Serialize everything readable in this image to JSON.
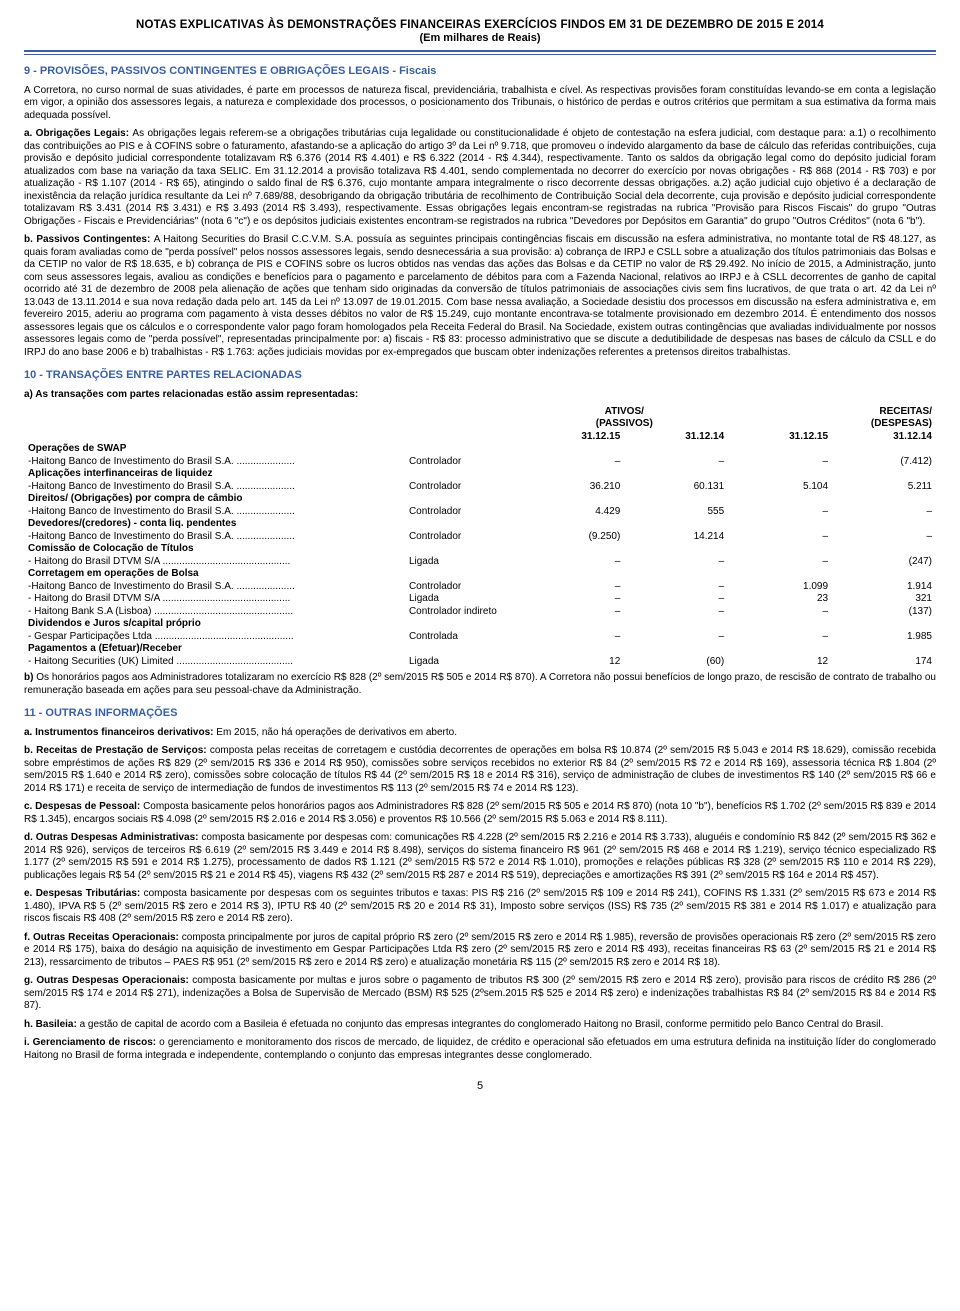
{
  "header": {
    "title": "NOTAS EXPLICATIVAS ÀS DEMONSTRAÇÕES FINANCEIRAS EXERCÍCIOS FINDOS EM 31 DE DEZEMBRO DE 2015 E 2014",
    "subtitle": "(Em milhares de Reais)"
  },
  "colors": {
    "heading": "#3a5fa0",
    "rule": "#3a5fa0",
    "text": "#000000",
    "background": "#ffffff"
  },
  "sec9": {
    "title": "9 - PROVISÕES, PASSIVOS CONTINGENTES E OBRIGAÇÕES LEGAIS - Fiscais",
    "intro": "A Corretora, no curso normal de suas atividades, é parte em processos de natureza fiscal, previdenciária, trabalhista e cível. As respectivas provisões foram constituídas levando-se em conta a legislação em vigor, a opinião dos assessores legais, a natureza e complexidade dos processos, o posicionamento dos Tribunais, o histórico de perdas e outros critérios que permitam a sua estimativa da forma mais adequada possível.",
    "a_lead": "a. Obrigações Legais: ",
    "a_body": "As obrigações legais referem-se a obrigações tributárias cuja legalidade ou constitucionalidade é objeto de contestação na esfera judicial, com destaque para: a.1) o recolhimento das contribuições ao PIS e à COFINS sobre o faturamento, afastando-se a aplicação do artigo 3º da Lei nº 9.718, que promoveu o indevido alargamento da base de cálculo das referidas contribuições, cuja provisão e depósito judicial correspondente totalizavam R$ 6.376 (2014 R$ 4.401) e R$ 6.322 (2014 - R$ 4.344), respectivamente. Tanto os saldos da obrigação legal como do depósito judicial foram atualizados com base na variação da taxa SELIC. Em 31.12.2014 a provisão totalizava R$ 4.401, sendo complementada no decorrer do exercício por novas obrigações - R$ 868 (2014 - R$ 703) e por atualização - R$ 1.107 (2014 - R$ 65), atingindo o saldo final de R$ 6.376, cujo montante ampara integralmente o risco decorrente dessas obrigações. a.2) ação judicial cujo objetivo é a declaração de inexistência da relação jurídica resultante da Lei nº 7.689/88, desobrigando da obrigação tributária de recolhimento de Contribuição Social dela decorrente, cuja provisão e depósito judicial correspondente totalizavam R$ 3.431 (2014 R$ 3.431) e R$ 3.493 (2014 R$ 3.493), respectivamente. Essas obrigações legais encontram-se registradas na rubrica \"Provisão para Riscos Fiscais\" do grupo \"Outras Obrigações - Fiscais e Previdenciárias\" (nota 6 \"c\") e os depósitos judiciais existentes encontram-se registrados na rubrica \"Devedores por Depósitos em Garantia\" do grupo \"Outros Créditos\" (nota 6 \"b\").",
    "b_lead": "b. Passivos Contingentes: ",
    "b_body": "A Haitong Securities do Brasil C.C.V.M. S.A. possuía as seguintes principais contingências fiscais em discussão na esfera administrativa, no montante total de R$ 48.127, as quais foram avaliadas como de \"perda possível\" pelos nossos assessores legais, sendo desnecessária a sua provisão: a) cobrança de IRPJ e CSLL sobre a atualização dos títulos patrimoniais das Bolsas e da CETIP no valor de R$ 18.635, e b) cobrança de PIS e COFINS sobre os lucros obtidos nas vendas das ações das Bolsas e da CETIP no valor de R$ 29.492. No início de 2015, a Administração, junto com seus assessores legais, avaliou as condições e benefícios para o pagamento e parcelamento de débitos para com a Fazenda Nacional, relativos ao IRPJ e à CSLL decorrentes de ganho de capital ocorrido até 31 de dezembro de 2008 pela alienação de ações que tenham sido originadas da conversão de títulos patrimoniais de associações civis sem fins lucrativos, de que trata o art. 42 da Lei nº 13.043 de 13.11.2014 e sua nova redação dada pelo art. 145 da Lei nº 13.097 de 19.01.2015. Com base nessa avaliação, a Sociedade desistiu dos processos em discussão na esfera administrativa e, em fevereiro 2015, aderiu ao programa com pagamento à vista desses débitos no valor de R$ 15.249, cujo montante encontrava-se totalmente provisionado em dezembro 2014. É entendimento dos nossos assessores legais que os cálculos e o correspondente valor pago foram homologados pela Receita Federal do Brasil. Na Sociedade, existem outras contingências que avaliadas individualmente por nossos assessores legais como de \"perda possível\", representadas principalmente por: a) fiscais - R$ 83: processo administrativo que se discute a dedutibilidade de despesas nas bases de cálculo da CSLL e do IRPJ do ano base 2006 e b) trabalhistas - R$ 1.763: ações judiciais movidas por ex-empregados que buscam obter indenizações referentes a pretensos direitos trabalhistas."
  },
  "sec10": {
    "title": "10 - TRANSAÇÕES ENTRE PARTES RELACIONADAS",
    "a": "a) As transações com partes relacionadas estão assim representadas:",
    "table": {
      "group_headers": {
        "left": "ATIVOS/\n(PASSIVOS)",
        "right": "RECEITAS/\n(DESPESAS)"
      },
      "col_dates": [
        "31.12.15",
        "31.12.14",
        "31.12.15",
        "31.12.14"
      ],
      "rows": [
        {
          "type": "grp",
          "label": "Operações de SWAP"
        },
        {
          "type": "row",
          "label": "-Haitong Banco de Investimento do Brasil S.A. .....................",
          "rel": "Controlador",
          "v": [
            "–",
            "–",
            "–",
            "(7.412)"
          ]
        },
        {
          "type": "grp",
          "label": "Aplicações interfinanceiras de liquidez"
        },
        {
          "type": "row",
          "label": "-Haitong Banco de Investimento do Brasil S.A. .....................",
          "rel": "Controlador",
          "v": [
            "36.210",
            "60.131",
            "5.104",
            "5.211"
          ]
        },
        {
          "type": "grp",
          "label": "Direitos/ (Obrigações) por compra de câmbio"
        },
        {
          "type": "row",
          "label": "-Haitong Banco de Investimento do Brasil S.A. .....................",
          "rel": "Controlador",
          "v": [
            "4.429",
            "555",
            "–",
            "–"
          ]
        },
        {
          "type": "grp",
          "label": "Devedores/(credores) - conta liq. pendentes"
        },
        {
          "type": "row",
          "label": "-Haitong Banco de Investimento do Brasil S.A. .....................",
          "rel": "Controlador",
          "v": [
            "(9.250)",
            "14.214",
            "–",
            "–"
          ]
        },
        {
          "type": "grp",
          "label": "Comissão de Colocação de Títulos"
        },
        {
          "type": "row",
          "label": "- Haitong do Brasil DTVM S/A ..............................................",
          "rel": "Ligada",
          "v": [
            "–",
            "–",
            "–",
            "(247)"
          ]
        },
        {
          "type": "grp",
          "label": "Corretagem em operações de Bolsa"
        },
        {
          "type": "row",
          "label": "-Haitong Banco de Investimento do Brasil S.A. .....................",
          "rel": "Controlador",
          "v": [
            "–",
            "–",
            "1.099",
            "1.914"
          ]
        },
        {
          "type": "row",
          "label": "- Haitong do Brasil DTVM S/A ..............................................",
          "rel": "Ligada",
          "v": [
            "–",
            "–",
            "23",
            "321"
          ]
        },
        {
          "type": "row",
          "label": "- Haitong Bank S.A (Lisboa) ..................................................",
          "rel": "Controlador indireto",
          "v": [
            "–",
            "–",
            "–",
            "(137)"
          ]
        },
        {
          "type": "grp",
          "label": "Dividendos e Juros s/capital próprio"
        },
        {
          "type": "row",
          "label": "- Gespar Participações Ltda ..................................................",
          "rel": "Controlada",
          "v": [
            "–",
            "–",
            "–",
            "1.985"
          ]
        },
        {
          "type": "grp",
          "label": "Pagamentos a (Efetuar)/Receber"
        },
        {
          "type": "row",
          "label": "- Haitong Securities (UK) Limited ..........................................",
          "rel": "Ligada",
          "v": [
            "12",
            "(60)",
            "12",
            "174"
          ]
        }
      ]
    },
    "b": "b) Os honorários pagos aos Administradores totalizaram no exercício R$ 828 (2º sem/2015 R$ 505 e 2014 R$ 870). A Corretora não possui benefícios de longo prazo, de rescisão de contrato de trabalho ou remuneração baseada em ações para seu pessoal-chave da Administração."
  },
  "sec11": {
    "title": "11 - OUTRAS INFORMAÇÕES",
    "items": [
      {
        "lead": "a. Instrumentos financeiros derivativos:",
        "body": " Em 2015, não há operações de derivativos em aberto."
      },
      {
        "lead": "b. Receitas de Prestação de Serviços:",
        "body": " composta pelas receitas de corretagem e custódia decorrentes de operações em bolsa R$ 10.874 (2º sem/2015 R$ 5.043 e 2014 R$ 18.629), comissão recebida sobre empréstimos de ações R$ 829 (2º sem/2015 R$ 336 e 2014 R$ 950), comissões sobre serviços recebidos no exterior R$ 84 (2º sem/2015 R$ 72 e 2014 R$ 169), assessoria técnica R$ 1.804 (2º sem/2015 R$ 1.640 e 2014 R$ zero), comissões sobre colocação de títulos R$ 44 (2º sem/2015 R$ 18 e 2014 R$ 316), serviço de administração de clubes de investimentos R$ 140 (2º sem/2015 R$ 66 e 2014 R$ 171) e receita de serviço de intermediação de fundos de investimentos R$ 113 (2º sem/2015 R$ 74 e 2014 R$ 123)."
      },
      {
        "lead": "c. Despesas de Pessoal:",
        "body": " Composta basicamente pelos honorários pagos aos Administradores R$ 828 (2º sem/2015 R$ 505 e 2014 R$ 870) (nota 10 \"b\"), benefícios R$ 1.702 (2º sem/2015 R$ 839 e 2014 R$ 1.345), encargos sociais R$ 4.098 (2º sem/2015 R$ 2.016 e 2014 R$ 3.056) e proventos R$ 10.566 (2º sem/2015 R$ 5.063 e 2014 R$ 8.111)."
      },
      {
        "lead": "d. Outras Despesas Administrativas:",
        "body": " composta basicamente por despesas com: comunicações R$ 4.228 (2º sem/2015 R$ 2.216 e 2014 R$ 3.733), aluguéis e condomínio R$ 842 (2º sem/2015 R$ 362 e 2014 R$ 926), serviços de terceiros R$ 6.619 (2º sem/2015 R$ 3.449 e 2014 R$ 8.498), serviços do sistema financeiro R$ 961 (2º sem/2015 R$ 468 e 2014 R$ 1.219), serviço técnico especializado R$ 1.177 (2º sem/2015 R$ 591 e 2014 R$ 1.275), processamento de dados R$ 1.121 (2º sem/2015 R$ 572 e 2014 R$ 1.010), promoções e relações públicas R$ 328 (2º sem/2015 R$ 110 e 2014 R$ 229), publicações legais R$ 54 (2º sem/2015 R$ 21 e 2014 R$ 45), viagens R$ 432 (2º sem/2015 R$ 287 e 2014 R$ 519), depreciações e amortizações R$ 391 (2º sem/2015 R$ 164 e 2014 R$ 457)."
      },
      {
        "lead": "e. Despesas Tributárias:",
        "body": " composta basicamente por despesas com os seguintes tributos e taxas: PIS R$ 216 (2º sem/2015 R$ 109 e 2014 R$ 241), COFINS R$ 1.331 (2º sem/2015 R$ 673 e 2014 R$ 1.480), IPVA R$ 5 (2º sem/2015 R$ zero e 2014 R$ 3), IPTU R$ 40 (2º sem/2015 R$ 20 e 2014 R$ 31), Imposto sobre serviços (ISS) R$ 735 (2º sem/2015 R$ 381 e 2014 R$ 1.017) e atualização para riscos fiscais R$ 408 (2º sem/2015 R$ zero e 2014 R$ zero)."
      },
      {
        "lead": "f. Outras Receitas Operacionais:",
        "body": " composta principalmente por juros de capital próprio R$ zero (2º sem/2015 R$ zero e 2014 R$ 1.985), reversão de provisões operacionais R$ zero (2º sem/2015 R$ zero e 2014 R$ 175), baixa do deságio na aquisição de investimento em Gespar Participações Ltda R$ zero (2º sem/2015 R$ zero e 2014 R$ 493), receitas financeiras R$ 63 (2º sem/2015 R$ 21 e 2014 R$ 213), ressarcimento de tributos – PAES R$ 951 (2º sem/2015 R$ zero e 2014 R$ zero) e atualização monetária R$ 115 (2º sem/2015 R$ zero e 2014 R$ 18)."
      },
      {
        "lead": "g. Outras Despesas Operacionais:",
        "body": " composta basicamente por multas e juros sobre o pagamento de tributos R$ 300 (2º sem/2015 R$ zero e 2014 R$ zero), provisão para riscos de crédito R$ 286 (2º sem/2015 R$ 174 e 2014 R$ 271), indenizações a Bolsa de Supervisão de Mercado (BSM) R$ 525 (2ºsem.2015 R$ 525 e 2014 R$ zero) e indenizações trabalhistas R$ 84 (2º sem/2015 R$ 84 e 2014 R$ 87)."
      },
      {
        "lead": "h. Basileia:",
        "body": " a gestão de capital de acordo com a Basileia é efetuada no conjunto das empresas integrantes do conglomerado Haitong no Brasil, conforme permitido pelo Banco Central do Brasil."
      },
      {
        "lead": "i. Gerenciamento de riscos:",
        "body": " o gerenciamento e monitoramento dos riscos de mercado, de liquidez, de crédito e operacional são efetuados em uma estrutura definida na instituição líder do conglomerado Haitong no Brasil de forma integrada e independente, contemplando o conjunto das empresas integrantes desse conglomerado."
      }
    ]
  },
  "page": "5"
}
